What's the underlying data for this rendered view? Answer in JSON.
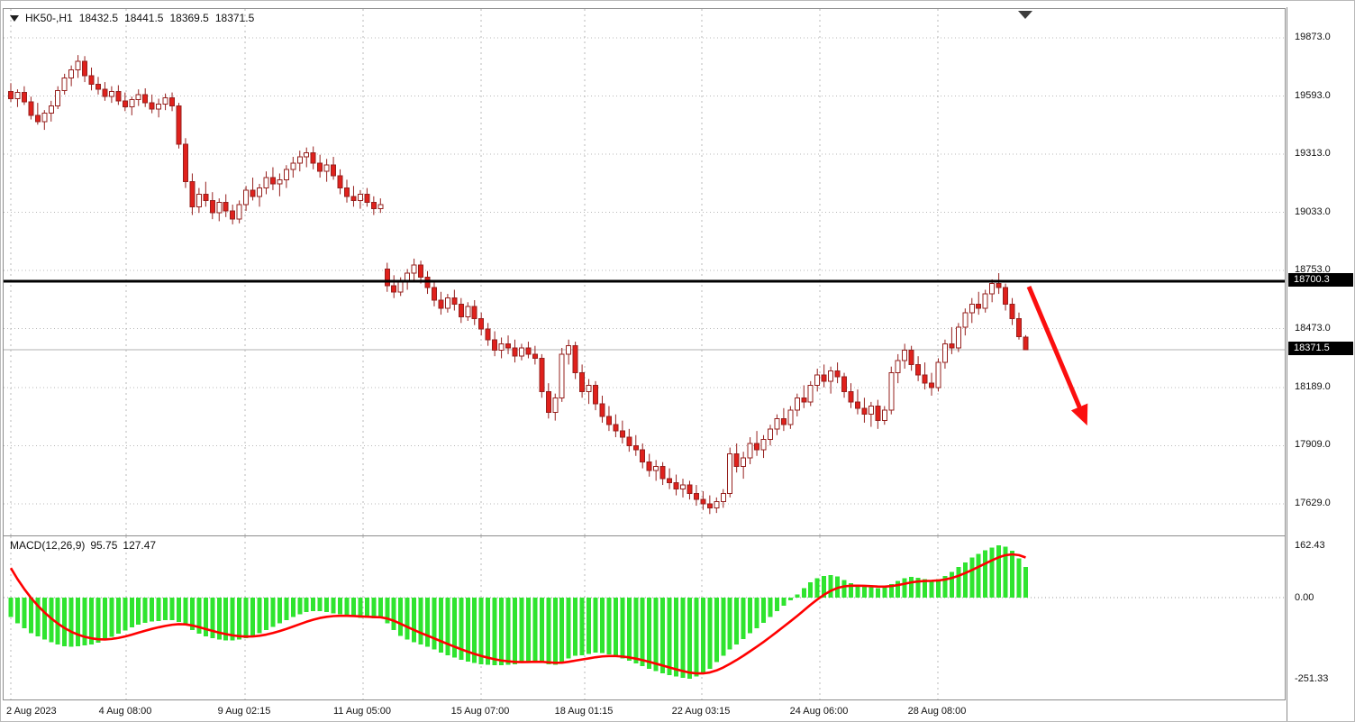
{
  "legend": {
    "symbol": "HK50-,H1",
    "open": "18432.5",
    "high": "18441.5",
    "low": "18369.5",
    "close": "18371.5"
  },
  "price_axis": {
    "ticks": [
      "19873.0",
      "19593.0",
      "19313.0",
      "19033.0",
      "18753.0",
      "18473.0",
      "18189.0",
      "17909.0",
      "17629.0"
    ],
    "tags": [
      {
        "label": "18700.3"
      },
      {
        "label": "18371.5"
      }
    ]
  },
  "macd_panel": {
    "label": "MACD(12,26,9)",
    "value_main": "95.75",
    "value_signal": "127.47",
    "ticks": [
      "162.43",
      "0.00",
      "-251.33"
    ]
  },
  "time_axis": {
    "labels": [
      "2 Aug 2023",
      "4 Aug 08:00",
      "9 Aug 02:15",
      "11 Aug 05:00",
      "15 Aug 07:00",
      "18 Aug 01:15",
      "22 Aug 03:15",
      "24 Aug 06:00",
      "28 Aug 08:00"
    ]
  },
  "colors": {
    "bull_body": "#ffffff",
    "bear_body": "#e0211c",
    "candle_outline": "#96201e",
    "wick": "#96201e",
    "grid": "#b8b8b8",
    "histogram": "#2fe42f",
    "signal_line": "#ff0000",
    "resistance_line": "#000000",
    "bid_line": "#b0b0b0",
    "arrow": "#fb0f0f",
    "tag_bg": "#000000",
    "tag_text": "#ffffff"
  },
  "chart_data": [
    {
      "type": "candlestick",
      "title": "HK50-,H1",
      "timeframe": "H1",
      "x_labels": [
        "2 Aug 2023",
        "4 Aug 08:00",
        "9 Aug 02:15",
        "11 Aug 05:00",
        "15 Aug 07:00",
        "18 Aug 01:15",
        "22 Aug 03:15",
        "24 Aug 06:00",
        "28 Aug 08:00"
      ],
      "y_ticks": [
        19873,
        19593,
        19313,
        19033,
        18753,
        18473,
        18189,
        17909,
        17629
      ],
      "ylim": [
        17490,
        19940
      ],
      "hline": {
        "price": 18700.3,
        "style": "solid-thick-black"
      },
      "last_price": 18371.5,
      "annotation": {
        "type": "arrow-down-right",
        "meaning": "projected decline"
      },
      "candles": [
        [
          19615,
          19655,
          19565,
          19580
        ],
        [
          19580,
          19625,
          19540,
          19610
        ],
        [
          19610,
          19640,
          19550,
          19565
        ],
        [
          19565,
          19590,
          19480,
          19500
        ],
        [
          19500,
          19560,
          19455,
          19470
        ],
        [
          19470,
          19525,
          19430,
          19510
        ],
        [
          19510,
          19570,
          19470,
          19545
        ],
        [
          19545,
          19640,
          19530,
          19620
        ],
        [
          19620,
          19700,
          19600,
          19680
        ],
        [
          19680,
          19740,
          19640,
          19720
        ],
        [
          19720,
          19790,
          19680,
          19760
        ],
        [
          19760,
          19785,
          19660,
          19690
        ],
        [
          19690,
          19730,
          19620,
          19650
        ],
        [
          19650,
          19685,
          19600,
          19625
        ],
        [
          19625,
          19660,
          19570,
          19590
        ],
        [
          19590,
          19640,
          19560,
          19615
        ],
        [
          19615,
          19645,
          19550,
          19570
        ],
        [
          19570,
          19610,
          19520,
          19540
        ],
        [
          19540,
          19590,
          19500,
          19575
        ],
        [
          19575,
          19625,
          19545,
          19600
        ],
        [
          19600,
          19630,
          19540,
          19560
        ],
        [
          19560,
          19600,
          19510,
          19530
        ],
        [
          19530,
          19580,
          19490,
          19555
        ],
        [
          19555,
          19605,
          19525,
          19585
        ],
        [
          19585,
          19610,
          19520,
          19545
        ],
        [
          19545,
          19560,
          19340,
          19360
        ],
        [
          19360,
          19390,
          19150,
          19180
        ],
        [
          19180,
          19220,
          19020,
          19060
        ],
        [
          19060,
          19150,
          19030,
          19120
        ],
        [
          19120,
          19180,
          19060,
          19090
        ],
        [
          19090,
          19130,
          19000,
          19030
        ],
        [
          19030,
          19100,
          18990,
          19080
        ],
        [
          19080,
          19120,
          19010,
          19040
        ],
        [
          19040,
          19070,
          18975,
          19000
        ],
        [
          19000,
          19090,
          18980,
          19070
        ],
        [
          19070,
          19160,
          19040,
          19140
        ],
        [
          19140,
          19200,
          19090,
          19110
        ],
        [
          19110,
          19170,
          19060,
          19150
        ],
        [
          19150,
          19230,
          19120,
          19200
        ],
        [
          19200,
          19250,
          19140,
          19170
        ],
        [
          19170,
          19220,
          19110,
          19190
        ],
        [
          19190,
          19260,
          19150,
          19240
        ],
        [
          19240,
          19300,
          19200,
          19270
        ],
        [
          19270,
          19330,
          19230,
          19300
        ],
        [
          19300,
          19345,
          19250,
          19320
        ],
        [
          19320,
          19350,
          19240,
          19270
        ],
        [
          19270,
          19310,
          19200,
          19230
        ],
        [
          19230,
          19290,
          19180,
          19260
        ],
        [
          19260,
          19300,
          19190,
          19210
        ],
        [
          19210,
          19240,
          19120,
          19150
        ],
        [
          19150,
          19190,
          19080,
          19110
        ],
        [
          19110,
          19160,
          19060,
          19090
        ],
        [
          19090,
          19140,
          19050,
          19120
        ],
        [
          19120,
          19150,
          19060,
          19080
        ],
        [
          19080,
          19110,
          19020,
          19050
        ],
        [
          19050,
          19100,
          19030,
          19070
        ],
        [
          18760,
          18790,
          18650,
          18680
        ],
        [
          18680,
          18730,
          18620,
          18650
        ],
        [
          18650,
          18720,
          18630,
          18700
        ],
        [
          18700,
          18760,
          18660,
          18740
        ],
        [
          18740,
          18810,
          18700,
          18780
        ],
        [
          18780,
          18800,
          18690,
          18720
        ],
        [
          18720,
          18750,
          18640,
          18670
        ],
        [
          18670,
          18700,
          18580,
          18610
        ],
        [
          18610,
          18650,
          18540,
          18570
        ],
        [
          18570,
          18640,
          18550,
          18620
        ],
        [
          18620,
          18660,
          18560,
          18590
        ],
        [
          18590,
          18620,
          18500,
          18530
        ],
        [
          18530,
          18600,
          18510,
          18580
        ],
        [
          18580,
          18610,
          18490,
          18520
        ],
        [
          18520,
          18550,
          18440,
          18470
        ],
        [
          18470,
          18500,
          18390,
          18420
        ],
        [
          18420,
          18460,
          18340,
          18370
        ],
        [
          18370,
          18430,
          18330,
          18400
        ],
        [
          18400,
          18440,
          18350,
          18380
        ],
        [
          18380,
          18420,
          18310,
          18340
        ],
        [
          18340,
          18400,
          18320,
          18380
        ],
        [
          18380,
          18410,
          18330,
          18350
        ],
        [
          18350,
          18390,
          18300,
          18330
        ],
        [
          18330,
          18350,
          18140,
          18170
        ],
        [
          18170,
          18210,
          18040,
          18070
        ],
        [
          18070,
          18160,
          18030,
          18140
        ],
        [
          18140,
          18380,
          18120,
          18350
        ],
        [
          18350,
          18420,
          18300,
          18390
        ],
        [
          18390,
          18410,
          18230,
          18260
        ],
        [
          18260,
          18300,
          18140,
          18170
        ],
        [
          18170,
          18230,
          18110,
          18200
        ],
        [
          18200,
          18220,
          18080,
          18110
        ],
        [
          18110,
          18150,
          18020,
          18050
        ],
        [
          18050,
          18100,
          17980,
          18010
        ],
        [
          18010,
          18060,
          17950,
          17980
        ],
        [
          17980,
          18030,
          17920,
          17950
        ],
        [
          17950,
          17990,
          17880,
          17910
        ],
        [
          17910,
          17960,
          17860,
          17890
        ],
        [
          17890,
          17920,
          17800,
          17830
        ],
        [
          17830,
          17870,
          17760,
          17790
        ],
        [
          17790,
          17840,
          17740,
          17810
        ],
        [
          17810,
          17830,
          17720,
          17750
        ],
        [
          17750,
          17800,
          17700,
          17730
        ],
        [
          17730,
          17770,
          17670,
          17700
        ],
        [
          17700,
          17750,
          17660,
          17720
        ],
        [
          17720,
          17740,
          17650,
          17680
        ],
        [
          17680,
          17720,
          17620,
          17650
        ],
        [
          17650,
          17690,
          17600,
          17630
        ],
        [
          17630,
          17670,
          17580,
          17610
        ],
        [
          17610,
          17660,
          17585,
          17640
        ],
        [
          17640,
          17700,
          17610,
          17680
        ],
        [
          17680,
          17900,
          17660,
          17870
        ],
        [
          17870,
          17920,
          17780,
          17810
        ],
        [
          17810,
          17880,
          17750,
          17850
        ],
        [
          17850,
          17950,
          17820,
          17920
        ],
        [
          17920,
          17980,
          17860,
          17890
        ],
        [
          17890,
          17960,
          17850,
          17940
        ],
        [
          17940,
          18010,
          17910,
          17990
        ],
        [
          17990,
          18060,
          17960,
          18040
        ],
        [
          18040,
          18090,
          17980,
          18010
        ],
        [
          18010,
          18100,
          17990,
          18080
        ],
        [
          18080,
          18160,
          18050,
          18140
        ],
        [
          18140,
          18200,
          18090,
          18120
        ],
        [
          18120,
          18220,
          18100,
          18200
        ],
        [
          18200,
          18280,
          18170,
          18250
        ],
        [
          18250,
          18300,
          18190,
          18220
        ],
        [
          18220,
          18290,
          18160,
          18270
        ],
        [
          18270,
          18310,
          18210,
          18240
        ],
        [
          18240,
          18260,
          18140,
          18170
        ],
        [
          18170,
          18210,
          18090,
          18120
        ],
        [
          18120,
          18180,
          18060,
          18090
        ],
        [
          18090,
          18140,
          18020,
          18060
        ],
        [
          18060,
          18120,
          18000,
          18100
        ],
        [
          18100,
          18130,
          17990,
          18030
        ],
        [
          18030,
          18100,
          18010,
          18080
        ],
        [
          18080,
          18290,
          18060,
          18260
        ],
        [
          18260,
          18350,
          18210,
          18320
        ],
        [
          18320,
          18400,
          18280,
          18370
        ],
        [
          18370,
          18390,
          18270,
          18300
        ],
        [
          18300,
          18340,
          18220,
          18250
        ],
        [
          18250,
          18310,
          18180,
          18210
        ],
        [
          18210,
          18260,
          18150,
          18190
        ],
        [
          18190,
          18330,
          18170,
          18310
        ],
        [
          18310,
          18420,
          18280,
          18400
        ],
        [
          18400,
          18480,
          18350,
          18380
        ],
        [
          18380,
          18500,
          18360,
          18480
        ],
        [
          18480,
          18570,
          18440,
          18550
        ],
        [
          18550,
          18620,
          18500,
          18590
        ],
        [
          18590,
          18650,
          18540,
          18570
        ],
        [
          18570,
          18660,
          18550,
          18640
        ],
        [
          18640,
          18710,
          18600,
          18690
        ],
        [
          18690,
          18740,
          18640,
          18670
        ],
        [
          18670,
          18690,
          18560,
          18590
        ],
        [
          18590,
          18620,
          18490,
          18520
        ],
        [
          18520,
          18550,
          18420,
          18435
        ],
        [
          18432.5,
          18441.5,
          18369.5,
          18371.5
        ]
      ]
    },
    {
      "type": "bar",
      "name": "MACD(12,26,9)",
      "y_ticks": [
        162.43,
        0,
        -251.33
      ],
      "signal_period": 9,
      "signal_seed": 130,
      "last_main": 95.75,
      "last_signal": 127.47,
      "values": [
        -60,
        -80,
        -95,
        -110,
        -120,
        -130,
        -138,
        -145,
        -150,
        -152,
        -150,
        -148,
        -145,
        -140,
        -132,
        -122,
        -112,
        -102,
        -92,
        -84,
        -78,
        -74,
        -72,
        -70,
        -70,
        -75,
        -85,
        -100,
        -112,
        -120,
        -126,
        -130,
        -132,
        -132,
        -130,
        -125,
        -118,
        -110,
        -100,
        -90,
        -80,
        -70,
        -60,
        -52,
        -45,
        -42,
        -42,
        -45,
        -48,
        -52,
        -56,
        -60,
        -62,
        -63,
        -64,
        -64,
        -80,
        -100,
        -118,
        -130,
        -138,
        -145,
        -152,
        -160,
        -170,
        -178,
        -185,
        -192,
        -198,
        -202,
        -206,
        -208,
        -210,
        -210,
        -208,
        -206,
        -202,
        -198,
        -196,
        -200,
        -206,
        -208,
        -200,
        -188,
        -180,
        -178,
        -175,
        -170,
        -172,
        -176,
        -182,
        -188,
        -196,
        -204,
        -212,
        -220,
        -228,
        -234,
        -240,
        -245,
        -249,
        -251.33,
        -245,
        -235,
        -220,
        -200,
        -180,
        -160,
        -145,
        -128,
        -110,
        -95,
        -78,
        -60,
        -42,
        -25,
        -8,
        10,
        30,
        48,
        60,
        68,
        70,
        66,
        55,
        45,
        38,
        34,
        32,
        30,
        34,
        42,
        52,
        60,
        64,
        62,
        58,
        54,
        58,
        68,
        80,
        95,
        110,
        124,
        136,
        147,
        156,
        162.43,
        158,
        145,
        122,
        95.75
      ]
    }
  ]
}
